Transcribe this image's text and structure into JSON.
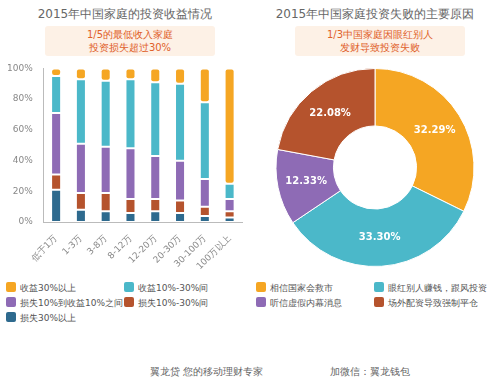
{
  "chart_data": [
    {
      "type": "bar",
      "title": "2015年中国家庭的投资收益情况",
      "annotation": [
        "1/5的最低收入家庭",
        "投资损失超过30%"
      ],
      "categories": [
        "低于1万",
        "1-3万",
        "3-8万",
        "8-12万",
        "12-20万",
        "20-30万",
        "30-100万",
        "100万以上"
      ],
      "series": [
        {
          "name": "收益30%以上",
          "color": "#f5a623",
          "values": [
            5,
            7,
            8,
            7,
            9,
            10,
            22,
            75
          ]
        },
        {
          "name": "收益10%-30%间",
          "color": "#4bb8c9",
          "values": [
            24,
            42,
            43,
            45,
            48,
            50,
            50,
            10
          ]
        },
        {
          "name": "损失10%到收益10%之间",
          "color": "#8e6bb5",
          "values": [
            40,
            32,
            30,
            33,
            28,
            26,
            18,
            8
          ]
        },
        {
          "name": "损失10%-30%间",
          "color": "#b5532d",
          "values": [
            10,
            11,
            12,
            9,
            8,
            8,
            6,
            4
          ]
        },
        {
          "name": "损失30%以上",
          "color": "#2e6a8e",
          "values": [
            21,
            8,
            7,
            6,
            7,
            6,
            4,
            3
          ]
        }
      ],
      "stacked": true,
      "ylim": [
        0,
        100
      ],
      "yticks": [
        {
          "value": 0,
          "label": "0%"
        },
        {
          "value": 20,
          "label": "20%"
        },
        {
          "value": 40,
          "label": "40%"
        },
        {
          "value": 60,
          "label": "60%"
        },
        {
          "value": 80,
          "label": "80%"
        },
        {
          "value": 100,
          "label": "100%"
        }
      ],
      "grid": false,
      "legend": "bottom"
    },
    {
      "type": "doughnut",
      "title": "2015年中国家庭投资失败的主要原因",
      "annotation": [
        "1/3中国家庭因眼红别人",
        "发财导致投资失败"
      ],
      "categories": [
        "相信国家会救市",
        "眼红别人赚钱，跟风投资",
        "听信虚假内幕消息",
        "场外配资导致强制平仓"
      ],
      "values": [
        32.29,
        33.3,
        12.33,
        22.08
      ],
      "value_labels": [
        "32.29%",
        "33.30%",
        "12.33%",
        "22.08%"
      ],
      "colors": [
        "#f5a623",
        "#4bb8c9",
        "#8e6bb5",
        "#b5532d"
      ],
      "data_labels": true,
      "legend": "bottom"
    }
  ],
  "footer": {
    "brand": "翼龙贷 您的移动理财专家",
    "wechat": "加微信：翼龙钱包"
  }
}
